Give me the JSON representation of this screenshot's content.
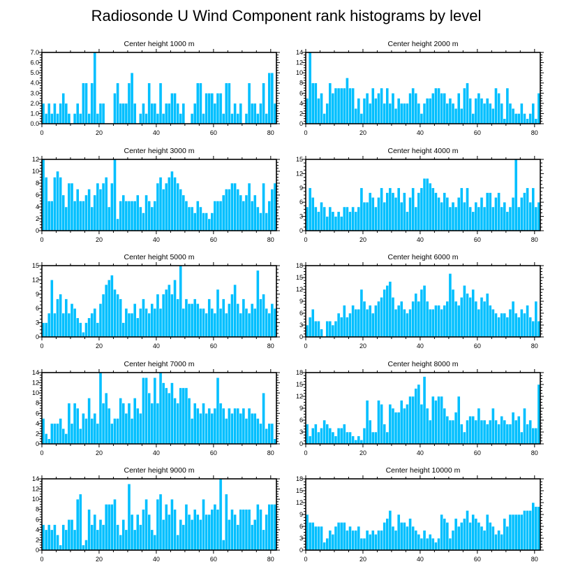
{
  "figure": {
    "title": "Radiosonde U Wind Component rank histograms by level"
  },
  "chart_data": [
    {
      "type": "bar",
      "title": "Center height 1000 m",
      "xlabel": "",
      "ylabel": "",
      "xlim": [
        0,
        82
      ],
      "ylim": [
        0,
        7
      ],
      "xticks": [
        "0",
        "20",
        "40",
        "60",
        "80"
      ],
      "yticks": [
        "0.0",
        "1.0",
        "2.0",
        "3.0",
        "4.0",
        "5.0",
        "6.0",
        "7.0"
      ],
      "ytick_values": [
        0,
        1,
        2,
        3,
        4,
        5,
        6,
        7
      ],
      "values": [
        2,
        1,
        2,
        1,
        2,
        1,
        2,
        3,
        2,
        1,
        0,
        1,
        2,
        1,
        4,
        4,
        1,
        4,
        7,
        1,
        2,
        2,
        0,
        0,
        0,
        3,
        4,
        2,
        2,
        2,
        4,
        5,
        2,
        0,
        1,
        2,
        1,
        4,
        2,
        2,
        1,
        4,
        1,
        2,
        2,
        3,
        3,
        2,
        1,
        2,
        0,
        0,
        1,
        2,
        4,
        4,
        1,
        3,
        3,
        3,
        2,
        3,
        3,
        1,
        4,
        4,
        1,
        2,
        1,
        2,
        0,
        1,
        4,
        2,
        2,
        1,
        2,
        4,
        1,
        5,
        5,
        2
      ]
    },
    {
      "type": "bar",
      "title": "Center height 2000 m",
      "xlabel": "",
      "ylabel": "",
      "xlim": [
        0,
        82
      ],
      "ylim": [
        0,
        14
      ],
      "xticks": [
        "0",
        "20",
        "40",
        "60",
        "80"
      ],
      "yticks": [
        "0",
        "2",
        "4",
        "6",
        "8",
        "10",
        "12",
        "14"
      ],
      "ytick_values": [
        0,
        2,
        4,
        6,
        8,
        10,
        12,
        14
      ],
      "values": [
        5,
        14,
        8,
        8,
        5,
        6,
        2,
        4,
        8,
        6,
        7,
        7,
        7,
        7,
        9,
        7,
        7,
        3,
        5,
        2,
        5,
        6,
        4,
        7,
        5,
        6,
        7,
        4,
        7,
        4,
        6,
        3,
        5,
        4,
        4,
        4,
        6,
        7,
        6,
        4,
        2,
        4,
        5,
        5,
        6,
        7,
        7,
        6,
        6,
        4,
        5,
        4,
        3,
        6,
        3,
        7,
        8,
        5,
        2,
        5,
        6,
        5,
        4,
        5,
        4,
        3,
        7,
        6,
        4,
        1,
        7,
        4,
        3,
        2,
        2,
        4,
        2,
        1,
        2,
        4,
        1,
        6
      ]
    },
    {
      "type": "bar",
      "title": "Center height 3000 m",
      "xlabel": "",
      "ylabel": "",
      "xlim": [
        0,
        82
      ],
      "ylim": [
        0,
        12
      ],
      "xticks": [
        "0",
        "20",
        "40",
        "60",
        "80"
      ],
      "yticks": [
        "0",
        "2",
        "4",
        "6",
        "8",
        "10",
        "12"
      ],
      "ytick_values": [
        0,
        2,
        4,
        6,
        8,
        10,
        12
      ],
      "values": [
        12,
        9,
        5,
        5,
        9,
        10,
        9,
        6,
        4,
        8,
        8,
        5,
        7,
        5,
        5,
        6,
        7,
        4,
        6,
        8,
        7,
        8,
        9,
        4,
        8,
        12,
        2,
        5,
        6,
        5,
        5,
        5,
        5,
        6,
        4,
        3,
        6,
        5,
        4,
        5,
        8,
        9,
        7,
        8,
        9,
        10,
        9,
        8,
        7,
        6,
        5,
        4,
        4,
        3,
        5,
        4,
        3,
        3,
        2,
        3,
        5,
        5,
        5,
        6,
        7,
        7,
        8,
        8,
        7,
        6,
        5,
        6,
        8,
        5,
        6,
        4,
        3,
        8,
        3,
        5,
        7,
        8
      ]
    },
    {
      "type": "bar",
      "title": "Center height 4000 m",
      "xlabel": "",
      "ylabel": "",
      "xlim": [
        0,
        82
      ],
      "ylim": [
        0,
        15
      ],
      "xticks": [
        "0",
        "20",
        "40",
        "60",
        "80"
      ],
      "yticks": [
        "0",
        "3",
        "6",
        "9",
        "12",
        "15"
      ],
      "ytick_values": [
        0,
        3,
        6,
        9,
        12,
        15
      ],
      "values": [
        5,
        9,
        7,
        5,
        4,
        6,
        5,
        3,
        5,
        4,
        3,
        4,
        3,
        5,
        5,
        4,
        5,
        4,
        5,
        9,
        6,
        6,
        8,
        7,
        5,
        7,
        9,
        6,
        8,
        9,
        8,
        7,
        9,
        6,
        8,
        4,
        7,
        9,
        5,
        8,
        9,
        11,
        11,
        10,
        9,
        8,
        7,
        6,
        8,
        7,
        5,
        6,
        5,
        7,
        9,
        6,
        9,
        5,
        4,
        6,
        5,
        7,
        5,
        8,
        8,
        5,
        7,
        8,
        5,
        6,
        4,
        5,
        7,
        15,
        5,
        7,
        8,
        9,
        6,
        9,
        5,
        6
      ]
    },
    {
      "type": "bar",
      "title": "Center height 5000 m",
      "xlabel": "",
      "ylabel": "",
      "xlim": [
        0,
        82
      ],
      "ylim": [
        0,
        15
      ],
      "xticks": [
        "0",
        "20",
        "40",
        "60",
        "80"
      ],
      "yticks": [
        "0",
        "3",
        "6",
        "9",
        "12",
        "15"
      ],
      "ytick_values": [
        0,
        3,
        6,
        9,
        12,
        15
      ],
      "values": [
        3,
        3,
        5,
        12,
        5,
        8,
        9,
        5,
        8,
        5,
        7,
        6,
        4,
        3,
        1,
        3,
        4,
        5,
        6,
        3,
        7,
        9,
        11,
        12,
        13,
        10,
        9,
        8,
        3,
        6,
        5,
        5,
        7,
        4,
        6,
        8,
        6,
        5,
        7,
        6,
        9,
        6,
        9,
        10,
        11,
        9,
        12,
        8,
        15,
        6,
        8,
        7,
        7,
        8,
        7,
        6,
        6,
        5,
        8,
        6,
        5,
        10,
        6,
        8,
        5,
        7,
        9,
        11,
        7,
        5,
        8,
        6,
        5,
        7,
        6,
        14,
        8,
        9,
        6,
        5,
        7,
        6
      ]
    },
    {
      "type": "bar",
      "title": "Center height 6000 m",
      "xlabel": "",
      "ylabel": "",
      "xlim": [
        0,
        82
      ],
      "ylim": [
        0,
        18
      ],
      "xticks": [
        "0",
        "20",
        "40",
        "60",
        "80"
      ],
      "yticks": [
        "0",
        "3",
        "6",
        "9",
        "12",
        "15",
        "18"
      ],
      "ytick_values": [
        0,
        3,
        6,
        9,
        12,
        15,
        18
      ],
      "values": [
        3,
        5,
        7,
        4,
        4,
        2,
        0,
        4,
        4,
        3,
        4,
        6,
        5,
        8,
        5,
        6,
        8,
        7,
        7,
        12,
        9,
        7,
        8,
        6,
        8,
        9,
        10,
        12,
        13,
        14,
        10,
        7,
        8,
        9,
        7,
        6,
        7,
        9,
        11,
        9,
        12,
        13,
        9,
        7,
        7,
        8,
        8,
        7,
        8,
        9,
        16,
        12,
        9,
        8,
        10,
        13,
        11,
        10,
        12,
        9,
        7,
        10,
        9,
        11,
        8,
        7,
        6,
        5,
        6,
        6,
        5,
        7,
        9,
        6,
        5,
        7,
        6,
        8,
        5,
        4,
        9,
        4
      ]
    },
    {
      "type": "bar",
      "title": "Center height 7000 m",
      "xlabel": "",
      "ylabel": "",
      "xlim": [
        0,
        82
      ],
      "ylim": [
        0,
        14
      ],
      "xticks": [
        "0",
        "20",
        "40",
        "60",
        "80"
      ],
      "yticks": [
        "0",
        "2",
        "4",
        "6",
        "8",
        "10",
        "12",
        "14"
      ],
      "ytick_values": [
        0,
        2,
        4,
        6,
        8,
        10,
        12,
        14
      ],
      "values": [
        5,
        2,
        1,
        4,
        4,
        4,
        5,
        3,
        2,
        8,
        4,
        8,
        7,
        3,
        6,
        5,
        9,
        5,
        6,
        4,
        14,
        8,
        10,
        7,
        4,
        5,
        5,
        9,
        8,
        6,
        8,
        5,
        9,
        7,
        6,
        13,
        13,
        10,
        8,
        13,
        8,
        14,
        12,
        11,
        10,
        12,
        9,
        8,
        11,
        11,
        11,
        9,
        5,
        8,
        7,
        6,
        8,
        6,
        7,
        6,
        7,
        13,
        8,
        7,
        5,
        7,
        6,
        7,
        7,
        6,
        7,
        5,
        7,
        6,
        6,
        5,
        4,
        10,
        3,
        4,
        4,
        1
      ]
    },
    {
      "type": "bar",
      "title": "Center height 8000 m",
      "xlabel": "",
      "ylabel": "",
      "xlim": [
        0,
        82
      ],
      "ylim": [
        0,
        18
      ],
      "xticks": [
        "0",
        "20",
        "40",
        "60",
        "80"
      ],
      "yticks": [
        "0",
        "3",
        "6",
        "9",
        "12",
        "15",
        "18"
      ],
      "ytick_values": [
        0,
        3,
        6,
        9,
        12,
        15,
        18
      ],
      "values": [
        5,
        2,
        4,
        5,
        3,
        4,
        6,
        5,
        4,
        3,
        2,
        4,
        4,
        5,
        3,
        3,
        2,
        1,
        2,
        1,
        4,
        11,
        6,
        3,
        3,
        11,
        10,
        5,
        3,
        10,
        9,
        8,
        8,
        11,
        9,
        10,
        12,
        12,
        14,
        15,
        10,
        17,
        9,
        6,
        12,
        11,
        12,
        12,
        9,
        7,
        6,
        6,
        8,
        12,
        5,
        3,
        6,
        7,
        7,
        6,
        9,
        6,
        6,
        5,
        6,
        9,
        6,
        5,
        7,
        6,
        5,
        5,
        8,
        6,
        7,
        3,
        9,
        5,
        6,
        4,
        4,
        15
      ]
    },
    {
      "type": "bar",
      "title": "Center height 9000 m",
      "xlabel": "",
      "ylabel": "",
      "xlim": [
        0,
        82
      ],
      "ylim": [
        0,
        14
      ],
      "xticks": [
        "0",
        "20",
        "40",
        "60",
        "80"
      ],
      "yticks": [
        "0",
        "2",
        "4",
        "6",
        "8",
        "10",
        "12",
        "14"
      ],
      "ytick_values": [
        0,
        2,
        4,
        6,
        8,
        10,
        12,
        14
      ],
      "values": [
        5,
        4,
        5,
        4,
        5,
        3,
        1,
        5,
        4,
        6,
        6,
        4,
        10,
        11,
        1,
        2,
        8,
        5,
        7,
        4,
        6,
        5,
        9,
        9,
        9,
        10,
        5,
        3,
        6,
        4,
        13,
        7,
        4,
        7,
        5,
        8,
        10,
        7,
        4,
        3,
        10,
        11,
        6,
        9,
        7,
        10,
        8,
        3,
        6,
        5,
        9,
        7,
        6,
        8,
        7,
        6,
        10,
        7,
        7,
        8,
        9,
        8,
        14,
        2,
        11,
        6,
        8,
        7,
        5,
        8,
        8,
        8,
        8,
        5,
        6,
        9,
        8,
        4,
        7,
        9,
        9,
        9
      ]
    },
    {
      "type": "bar",
      "title": "Center height 10000 m",
      "xlabel": "",
      "ylabel": "",
      "xlim": [
        0,
        82
      ],
      "ylim": [
        0,
        18
      ],
      "xticks": [
        "0",
        "20",
        "40",
        "60",
        "80"
      ],
      "yticks": [
        "0",
        "3",
        "6",
        "9",
        "12",
        "15",
        "18"
      ],
      "ytick_values": [
        0,
        3,
        6,
        9,
        12,
        15,
        18
      ],
      "values": [
        9,
        7,
        7,
        6,
        6,
        6,
        2,
        3,
        5,
        4,
        6,
        7,
        7,
        7,
        5,
        6,
        5,
        5,
        6,
        3,
        3,
        5,
        4,
        5,
        4,
        5,
        5,
        7,
        8,
        10,
        6,
        5,
        9,
        7,
        7,
        6,
        8,
        6,
        5,
        4,
        3,
        5,
        3,
        4,
        3,
        2,
        3,
        9,
        8,
        7,
        3,
        5,
        8,
        6,
        7,
        8,
        10,
        7,
        9,
        8,
        7,
        6,
        5,
        9,
        7,
        6,
        4,
        5,
        4,
        8,
        6,
        9,
        9,
        9,
        9,
        9,
        10,
        10,
        10,
        12,
        11,
        11
      ]
    }
  ]
}
